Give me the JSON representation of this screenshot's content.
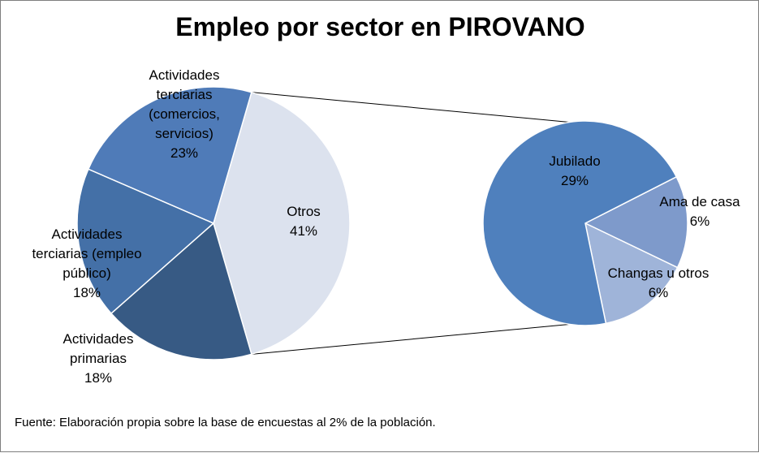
{
  "chart_data": {
    "type": "pie",
    "subtype": "pie-of-pie",
    "title": "Empleo por sector en PIROVANO",
    "source": "Fuente: Elaboración propia sobre la base de encuestas al 2%  de la población.",
    "main_pie": {
      "slices": [
        {
          "key": "otros",
          "lines": [
            "Otros",
            "41%"
          ],
          "value": 41,
          "color": "#dce2ee"
        },
        {
          "key": "primarias",
          "lines": [
            "Actividades",
            "primarias",
            "18%"
          ],
          "value": 18,
          "color": "#375a84"
        },
        {
          "key": "empleo-publico",
          "lines": [
            "Actividades",
            "terciarias (empleo",
            "público)",
            "18%"
          ],
          "value": 18,
          "color": "#4470a7"
        },
        {
          "key": "comercios",
          "lines": [
            "Actividades",
            "terciarias",
            "(comercios,",
            "servicios)",
            "23%"
          ],
          "value": 23,
          "color": "#4f7bb8"
        }
      ]
    },
    "secondary_pie": {
      "slices": [
        {
          "key": "ama-de-casa",
          "lines": [
            "Ama de casa",
            "6%"
          ],
          "value": 6,
          "color": "#7e9acb"
        },
        {
          "key": "changas",
          "lines": [
            "Changas u otros",
            "6%"
          ],
          "value": 6,
          "color": "#9fb4d9"
        },
        {
          "key": "jubilado",
          "lines": [
            "Jubilado",
            "29%"
          ],
          "value": 29,
          "color": "#4f80bd"
        }
      ]
    }
  }
}
